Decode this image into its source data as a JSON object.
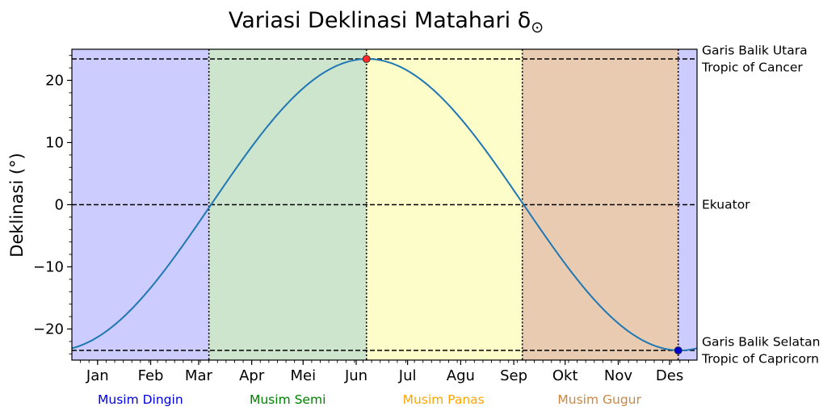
{
  "chart_data": {
    "type": "line",
    "title": "Variasi Deklinasi Matahari δ",
    "title_symbol": "⊙",
    "ylabel": "Deklinasi (°)",
    "xlabel": "",
    "xlim": [
      0,
      365
    ],
    "ylim": [
      -25,
      25
    ],
    "yticks": [
      -20,
      -10,
      0,
      10,
      20
    ],
    "y_tick_labels": [
      "−20",
      "−10",
      "0",
      "10",
      "20"
    ],
    "months": [
      {
        "label": "Jan",
        "day": 15
      },
      {
        "label": "Feb",
        "day": 46
      },
      {
        "label": "Mar",
        "day": 74
      },
      {
        "label": "Apr",
        "day": 105
      },
      {
        "label": "Mei",
        "day": 135
      },
      {
        "label": "Jun",
        "day": 166
      },
      {
        "label": "Jul",
        "day": 196
      },
      {
        "label": "Agu",
        "day": 227
      },
      {
        "label": "Sep",
        "day": 258
      },
      {
        "label": "Okt",
        "day": 288
      },
      {
        "label": "Nov",
        "day": 319
      },
      {
        "label": "Des",
        "day": 349
      }
    ],
    "seasons": [
      {
        "name": "Musim Dingin",
        "start": 0,
        "end": 80,
        "fill": "#ccccff",
        "label_color": "#0000dd",
        "label_day": 40
      },
      {
        "name": "Musim Semi",
        "start": 80,
        "end": 172,
        "fill": "#cde5cd",
        "label_color": "#008000",
        "label_day": 126
      },
      {
        "name": "Musim Panas",
        "start": 172,
        "end": 263,
        "fill": "#fdfdc9",
        "label_color": "#ffa500",
        "label_day": 217
      },
      {
        "name": "Musim Gugur",
        "start": 263,
        "end": 354,
        "fill": "#e9cbb1",
        "label_color": "#cd853f",
        "label_day": 308
      },
      {
        "name": "",
        "start": 354,
        "end": 365,
        "fill": "#ccccff",
        "label_color": "#0000dd",
        "label_day": null
      }
    ],
    "vertical_lines": [
      80,
      172,
      263,
      354
    ],
    "reference_lines": [
      {
        "value": 23.44,
        "label_lines": [
          "Garis Balik Utara",
          "Tropic of Cancer"
        ]
      },
      {
        "value": 0,
        "label_lines": [
          "Ekuator"
        ]
      },
      {
        "value": -23.44,
        "label_lines": [
          "Garis Balik Selatan",
          "Tropic of Capricorn"
        ]
      }
    ],
    "series": [
      {
        "formula": "-23.44 * cos(2π (day + 10) / 365)",
        "color": "#1f77b4",
        "day_start": 0,
        "day_end": 365
      }
    ],
    "markers": [
      {
        "day": 172,
        "value": 23.44,
        "color": "#ff2a2a"
      },
      {
        "day": 354,
        "value": -23.44,
        "color": "#0000cc"
      }
    ]
  }
}
